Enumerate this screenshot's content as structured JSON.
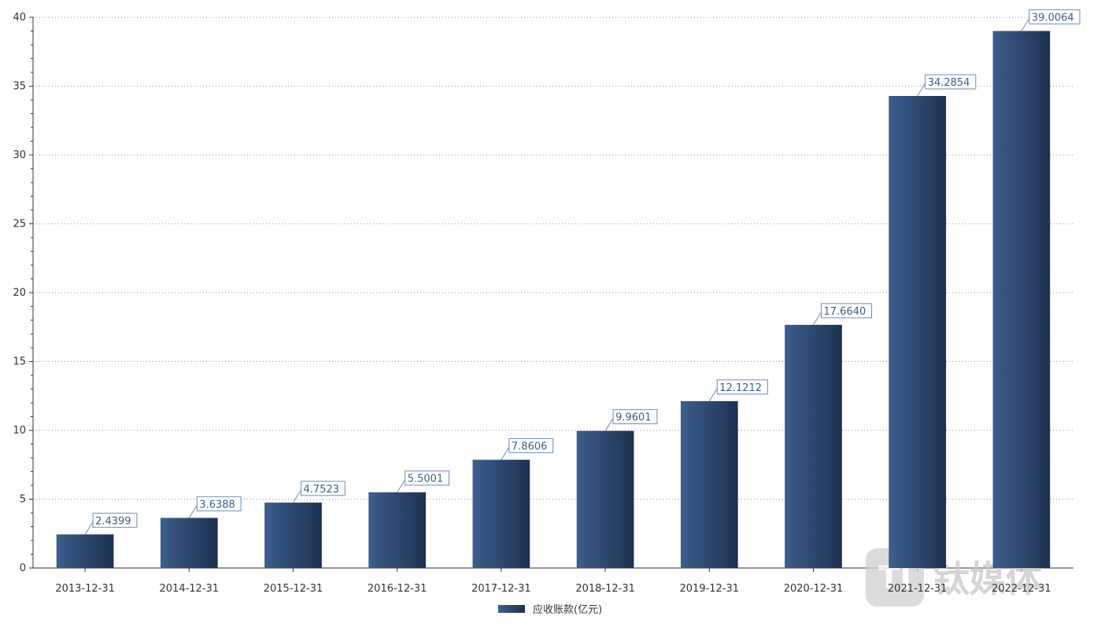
{
  "chart_data": {
    "type": "bar",
    "categories": [
      "2013-12-31",
      "2014-12-31",
      "2015-12-31",
      "2016-12-31",
      "2017-12-31",
      "2018-12-31",
      "2019-12-31",
      "2020-12-31",
      "2021-12-31",
      "2022-12-31"
    ],
    "series": [
      {
        "name": "应收账款(亿元)",
        "values": [
          2.4399,
          3.6388,
          4.7523,
          5.5001,
          7.8606,
          9.9601,
          12.1212,
          17.664,
          34.2854,
          39.0064
        ],
        "labels": [
          "2.4399",
          "3.6388",
          "4.7523",
          "5.5001",
          "7.8606",
          "9.9601",
          "12.1212",
          "17.6640",
          "34.2854",
          "39.0064"
        ]
      }
    ],
    "ylim": [
      0,
      40
    ],
    "yticks": [
      0,
      5,
      10,
      15,
      20,
      25,
      30,
      35,
      40
    ],
    "grid": "horizontal-dotted",
    "legend_position": "bottom-center",
    "colors": {
      "bar_light": "#3b5f8e",
      "bar_dark": "#1d3150",
      "label": "#3a5f8f",
      "label_border": "#6d8db3"
    }
  },
  "watermark": {
    "text": "钛媒体",
    "logo_glyph": "TI"
  }
}
